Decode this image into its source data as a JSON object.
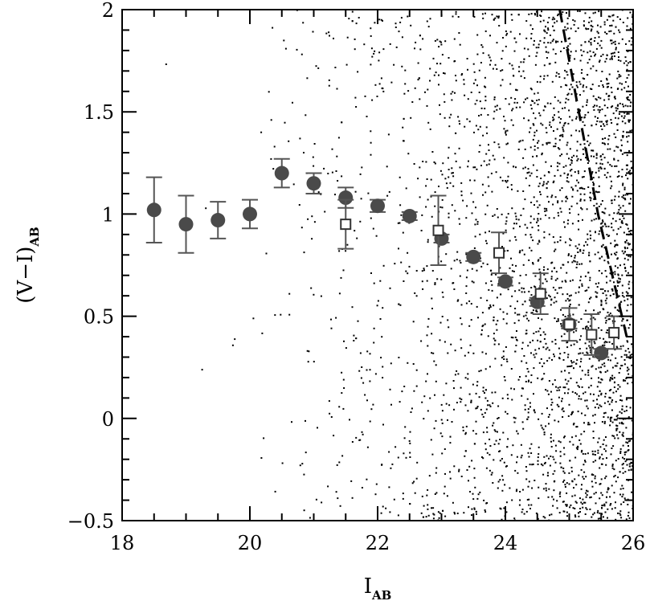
{
  "chart_data": {
    "type": "scatter",
    "xlabel": "I",
    "xlabel_sub": "AB",
    "ylabel": "(V−I)",
    "ylabel_sub": "AB",
    "xlim": [
      18,
      26
    ],
    "ylim": [
      -0.5,
      2
    ],
    "xticks": [
      18,
      20,
      22,
      24,
      26
    ],
    "xtick_labels": [
      "18",
      "20",
      "22",
      "24",
      "26"
    ],
    "yticks": [
      -0.5,
      0,
      0.5,
      1,
      1.5,
      2
    ],
    "ytick_labels": [
      "−0.5",
      "0",
      "0.5",
      "1",
      "1.5",
      "2"
    ],
    "grid": false,
    "legend": "none",
    "series": [
      {
        "marker": "filled-circle",
        "color": "#4a4a4a",
        "points": [
          {
            "x": 18.5,
            "y": 1.02,
            "err": 0.16
          },
          {
            "x": 19.0,
            "y": 0.95,
            "err": 0.14
          },
          {
            "x": 19.5,
            "y": 0.97,
            "err": 0.09
          },
          {
            "x": 20.0,
            "y": 1.0,
            "err": 0.07
          },
          {
            "x": 20.5,
            "y": 1.2,
            "err": 0.07
          },
          {
            "x": 21.0,
            "y": 1.15,
            "err": 0.05
          },
          {
            "x": 21.5,
            "y": 1.08,
            "err": 0.05
          },
          {
            "x": 22.0,
            "y": 1.04,
            "err": 0.03
          },
          {
            "x": 22.5,
            "y": 0.99,
            "err": 0.02
          },
          {
            "x": 23.0,
            "y": 0.88,
            "err": 0.02
          },
          {
            "x": 23.5,
            "y": 0.79,
            "err": 0.02
          },
          {
            "x": 24.0,
            "y": 0.67,
            "err": 0.02
          },
          {
            "x": 24.5,
            "y": 0.57,
            "err": 0.02
          },
          {
            "x": 25.0,
            "y": 0.46,
            "err": 0.02
          },
          {
            "x": 25.5,
            "y": 0.32,
            "err": 0.02
          }
        ]
      },
      {
        "marker": "open-square",
        "color": "#333333",
        "points": [
          {
            "x": 21.5,
            "y": 0.95,
            "err": 0.12
          },
          {
            "x": 22.95,
            "y": 0.92,
            "err": 0.17
          },
          {
            "x": 23.9,
            "y": 0.81,
            "err": 0.1
          },
          {
            "x": 24.55,
            "y": 0.61,
            "err": 0.1
          },
          {
            "x": 25.0,
            "y": 0.46,
            "err": 0.08
          },
          {
            "x": 25.35,
            "y": 0.41,
            "err": 0.1
          },
          {
            "x": 25.7,
            "y": 0.42,
            "err": 0.08
          }
        ]
      }
    ],
    "background_points": {
      "marker": "dot",
      "color": "#000000",
      "count": 3200,
      "x_range": [
        18.3,
        26
      ],
      "y_range": [
        -0.5,
        2
      ]
    },
    "limit_line": {
      "style": "dashed",
      "color": "#000000",
      "points": [
        [
          24.85,
          2.0
        ],
        [
          25.45,
          1.0
        ],
        [
          25.9,
          0.4
        ]
      ]
    }
  }
}
